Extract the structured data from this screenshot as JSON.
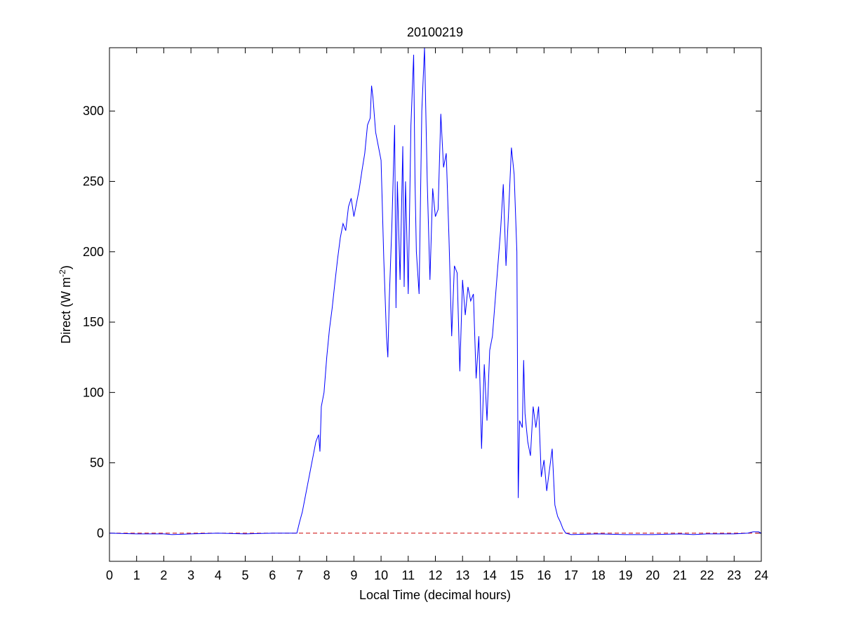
{
  "chart_data": {
    "type": "line",
    "title": "20100219",
    "xlabel": "Local Time (decimal hours)",
    "ylabel": [
      "Direct (W m",
      "-2",
      ")"
    ],
    "xlim": [
      0,
      24
    ],
    "xticks": [
      0,
      1,
      2,
      3,
      4,
      5,
      6,
      7,
      8,
      9,
      10,
      11,
      12,
      13,
      14,
      15,
      16,
      17,
      18,
      19,
      20,
      21,
      22,
      23,
      24
    ],
    "ylim": [
      -20,
      345
    ],
    "yticks": [
      0,
      50,
      100,
      150,
      200,
      250,
      300
    ],
    "grid": false,
    "hline": {
      "y": 0,
      "color": "#cc0000",
      "style": "dashed"
    },
    "series": [
      {
        "color": "#0000ff",
        "x": [
          0,
          1,
          2,
          2.3,
          3,
          4,
          5,
          6,
          6.5,
          6.9,
          7.0,
          7.1,
          7.2,
          7.3,
          7.4,
          7.5,
          7.6,
          7.7,
          7.75,
          7.8,
          7.9,
          8.0,
          8.1,
          8.2,
          8.3,
          8.4,
          8.5,
          8.6,
          8.7,
          8.8,
          8.9,
          9.0,
          9.1,
          9.2,
          9.3,
          9.4,
          9.5,
          9.6,
          9.65,
          9.7,
          9.8,
          9.9,
          10.0,
          10.1,
          10.2,
          10.25,
          10.3,
          10.4,
          10.5,
          10.55,
          10.6,
          10.7,
          10.8,
          10.85,
          10.9,
          11.0,
          11.1,
          11.2,
          11.25,
          11.3,
          11.4,
          11.5,
          11.6,
          11.7,
          11.8,
          11.9,
          12.0,
          12.1,
          12.2,
          12.3,
          12.4,
          12.5,
          12.6,
          12.7,
          12.8,
          12.9,
          13.0,
          13.1,
          13.2,
          13.3,
          13.4,
          13.5,
          13.6,
          13.7,
          13.8,
          13.9,
          14.0,
          14.1,
          14.2,
          14.3,
          14.4,
          14.5,
          14.6,
          14.7,
          14.8,
          14.9,
          15.0,
          15.05,
          15.1,
          15.2,
          15.25,
          15.3,
          15.4,
          15.5,
          15.6,
          15.7,
          15.8,
          15.9,
          16.0,
          16.1,
          16.2,
          16.3,
          16.4,
          16.5,
          16.6,
          16.7,
          16.8,
          17.0,
          18.0,
          19.0,
          20.0,
          21.0,
          21.5,
          22.0,
          23.0,
          23.5,
          23.7,
          23.9,
          24.0
        ],
        "values": [
          0,
          -0.5,
          -0.5,
          -1,
          -0.5,
          0,
          -0.5,
          0,
          0,
          0,
          8,
          15,
          25,
          35,
          45,
          55,
          65,
          70,
          58,
          90,
          100,
          125,
          145,
          160,
          178,
          195,
          210,
          220,
          215,
          232,
          238,
          225,
          235,
          245,
          258,
          270,
          290,
          295,
          318,
          310,
          285,
          275,
          265,
          195,
          140,
          125,
          165,
          220,
          290,
          160,
          250,
          180,
          275,
          175,
          250,
          170,
          290,
          340,
          250,
          200,
          170,
          300,
          345,
          250,
          180,
          245,
          225,
          230,
          298,
          260,
          270,
          210,
          140,
          190,
          185,
          115,
          180,
          155,
          175,
          165,
          170,
          110,
          140,
          60,
          120,
          80,
          130,
          140,
          165,
          190,
          215,
          248,
          190,
          230,
          274,
          255,
          200,
          25,
          80,
          75,
          123,
          85,
          65,
          55,
          90,
          75,
          90,
          40,
          52,
          30,
          45,
          60,
          20,
          12,
          8,
          3,
          0,
          -1,
          -0.5,
          -1,
          -1,
          -0.5,
          -1,
          -0.5,
          -0.5,
          0,
          1,
          1,
          0
        ]
      }
    ]
  }
}
